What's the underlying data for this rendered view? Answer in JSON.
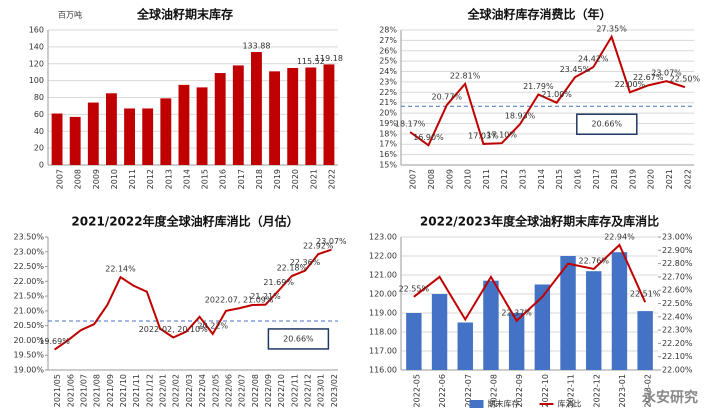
{
  "chart_data": [
    {
      "type": "bar",
      "title": "全球油籽期末库存",
      "unit_label": "百万吨",
      "categories": [
        "2007",
        "2008",
        "2009",
        "2010",
        "2011",
        "2012",
        "2013",
        "2014",
        "2015",
        "2016",
        "2017",
        "2018",
        "2019",
        "2020",
        "2021",
        "2022"
      ],
      "values": [
        61,
        57,
        74,
        85,
        67,
        67,
        79,
        95,
        92,
        109,
        118,
        133.88,
        111,
        115,
        115.52,
        119.18
      ],
      "value_labels": [
        null,
        null,
        null,
        null,
        null,
        null,
        null,
        null,
        null,
        null,
        null,
        "133.88",
        null,
        null,
        "115.52",
        "119.18"
      ],
      "color": "#c00000",
      "ylim": [
        0,
        160
      ],
      "yticks": [
        0,
        20,
        40,
        60,
        80,
        100,
        120,
        140,
        160
      ],
      "grid": true
    },
    {
      "type": "line",
      "title": "全球油籽库存消费比（年）",
      "categories": [
        "2007",
        "2008",
        "2009",
        "2010",
        "2011",
        "2012",
        "2013",
        "2014",
        "2015",
        "2016",
        "2017",
        "2018",
        "2019",
        "2020",
        "2021",
        "2022"
      ],
      "values": [
        18.17,
        16.9,
        20.77,
        22.81,
        17.03,
        17.1,
        18.93,
        21.79,
        21.0,
        23.45,
        24.42,
        27.35,
        22.0,
        22.67,
        23.07,
        22.5
      ],
      "value_labels": [
        "18.17%",
        "16.90%",
        "20.77%",
        "22.81%",
        "17.03%",
        "17.10%",
        "18.93%",
        "21.79%",
        "21.00%",
        "23.45%",
        "24.42%",
        "27.35%",
        "22.00%",
        "22.67%",
        "23.07%",
        "22.50%"
      ],
      "color": "#c00000",
      "ylim": [
        15,
        28
      ],
      "yticks": [
        {
          "value": 15,
          "label": "15%"
        },
        {
          "value": 16,
          "label": "16%"
        },
        {
          "value": 17,
          "label": "17%"
        },
        {
          "value": 18,
          "label": "18%"
        },
        {
          "value": 19,
          "label": "19%"
        },
        {
          "value": 20,
          "label": "20%"
        },
        {
          "value": 21,
          "label": "21%"
        },
        {
          "value": 22,
          "label": "22%"
        },
        {
          "value": 23,
          "label": "23%"
        },
        {
          "value": 24,
          "label": "24%"
        },
        {
          "value": 25,
          "label": "25%"
        },
        {
          "value": 26,
          "label": "26%"
        },
        {
          "value": 27,
          "label": "27%"
        },
        {
          "value": 28,
          "label": "28%"
        }
      ],
      "grid": true,
      "reference": {
        "value": 20.66,
        "label": "20.66%"
      }
    },
    {
      "type": "line",
      "title": "2021/2022年度全球油籽库消比（月估）",
      "categories": [
        "2021/05",
        "2021/06",
        "2021/07",
        "2021/08",
        "2021/09",
        "2021/10",
        "2021/11",
        "2021/12",
        "2022/01",
        "2022/02",
        "2022/03",
        "2022/04",
        "2022/05",
        "2022/06",
        "2022/07",
        "2022/08",
        "2022/09",
        "2022/10",
        "2022/11",
        "2022/12",
        "2023/01",
        "2023/02"
      ],
      "values": [
        19.69,
        20.0,
        20.35,
        20.55,
        21.2,
        22.14,
        21.85,
        21.65,
        20.4,
        20.1,
        20.3,
        20.8,
        20.22,
        21.0,
        21.09,
        21.2,
        21.21,
        21.69,
        22.18,
        22.36,
        22.92,
        23.07
      ],
      "value_labels": [
        "19.69%",
        null,
        null,
        null,
        null,
        "22.14%",
        null,
        null,
        null,
        "2022-02, 20.10%",
        null,
        null,
        "20.22%",
        null,
        "2022.07, 21.09%",
        null,
        "21.21%",
        "21.69%",
        "22.18%",
        "22.36%",
        "22.92%",
        "23.07%"
      ],
      "color": "#c00000",
      "ylim": [
        19,
        23.5
      ],
      "yticks": [
        {
          "value": 19,
          "label": "19.00%"
        },
        {
          "value": 19.5,
          "label": "19.50%"
        },
        {
          "value": 20,
          "label": "20.00%"
        },
        {
          "value": 20.5,
          "label": "20.50%"
        },
        {
          "value": 21,
          "label": "21.00%"
        },
        {
          "value": 21.5,
          "label": "21.50%"
        },
        {
          "value": 22,
          "label": "22.00%"
        },
        {
          "value": 22.5,
          "label": "22.50%"
        },
        {
          "value": 23,
          "label": "23.00%"
        },
        {
          "value": 23.5,
          "label": "23.50%"
        }
      ],
      "grid": false,
      "reference": {
        "value": 20.66,
        "label": "20.66%"
      }
    },
    {
      "type": "bar_line",
      "title": "2022/2023年度全球油籽期末库存及库消比",
      "categories": [
        "2022-05",
        "2022-06",
        "2022-07",
        "2022-08",
        "2022-09",
        "2022-10",
        "2022-11",
        "2022-12",
        "2023-01",
        "2023-02"
      ],
      "series": [
        {
          "name": "期末库存",
          "color": "#4472c4",
          "values": [
            119.0,
            120.0,
            118.5,
            120.7,
            119.0,
            120.5,
            122.0,
            121.2,
            122.2,
            119.1
          ]
        },
        {
          "name": "库消比",
          "color": "#c00000",
          "axis": "y2",
          "values": [
            22.55,
            22.7,
            22.38,
            22.7,
            22.37,
            22.55,
            22.8,
            22.76,
            22.94,
            22.51
          ],
          "value_labels": [
            "22.55%",
            null,
            null,
            null,
            "22.37%",
            null,
            null,
            "22.76%",
            "22.94%",
            "22.51%"
          ]
        }
      ],
      "ylim": [
        116,
        123
      ],
      "yticks": [
        {
          "value": 116,
          "label": "116.00"
        },
        {
          "value": 117,
          "label": "117.00"
        },
        {
          "value": 118,
          "label": "118.00"
        },
        {
          "value": 119,
          "label": "119.00"
        },
        {
          "value": 120,
          "label": "120.00"
        },
        {
          "value": 121,
          "label": "121.00"
        },
        {
          "value": 122,
          "label": "122.00"
        },
        {
          "value": 123,
          "label": "123.00"
        }
      ],
      "y2lim": [
        22.0,
        23.0
      ],
      "y2ticks": [
        {
          "value": 22.0,
          "label": "22.00%"
        },
        {
          "value": 22.1,
          "label": "22.10%"
        },
        {
          "value": 22.2,
          "label": "22.20%"
        },
        {
          "value": 22.3,
          "label": "22.30%"
        },
        {
          "value": 22.4,
          "label": "22.40%"
        },
        {
          "value": 22.5,
          "label": "22.50%"
        },
        {
          "value": 22.6,
          "label": "22.60%"
        },
        {
          "value": 22.7,
          "label": "22.70%"
        },
        {
          "value": 22.8,
          "label": "22.80%"
        },
        {
          "value": 22.9,
          "label": "22.90%"
        },
        {
          "value": 23.0,
          "label": "23.00%"
        }
      ],
      "grid": true
    }
  ],
  "watermark": "永安研究"
}
